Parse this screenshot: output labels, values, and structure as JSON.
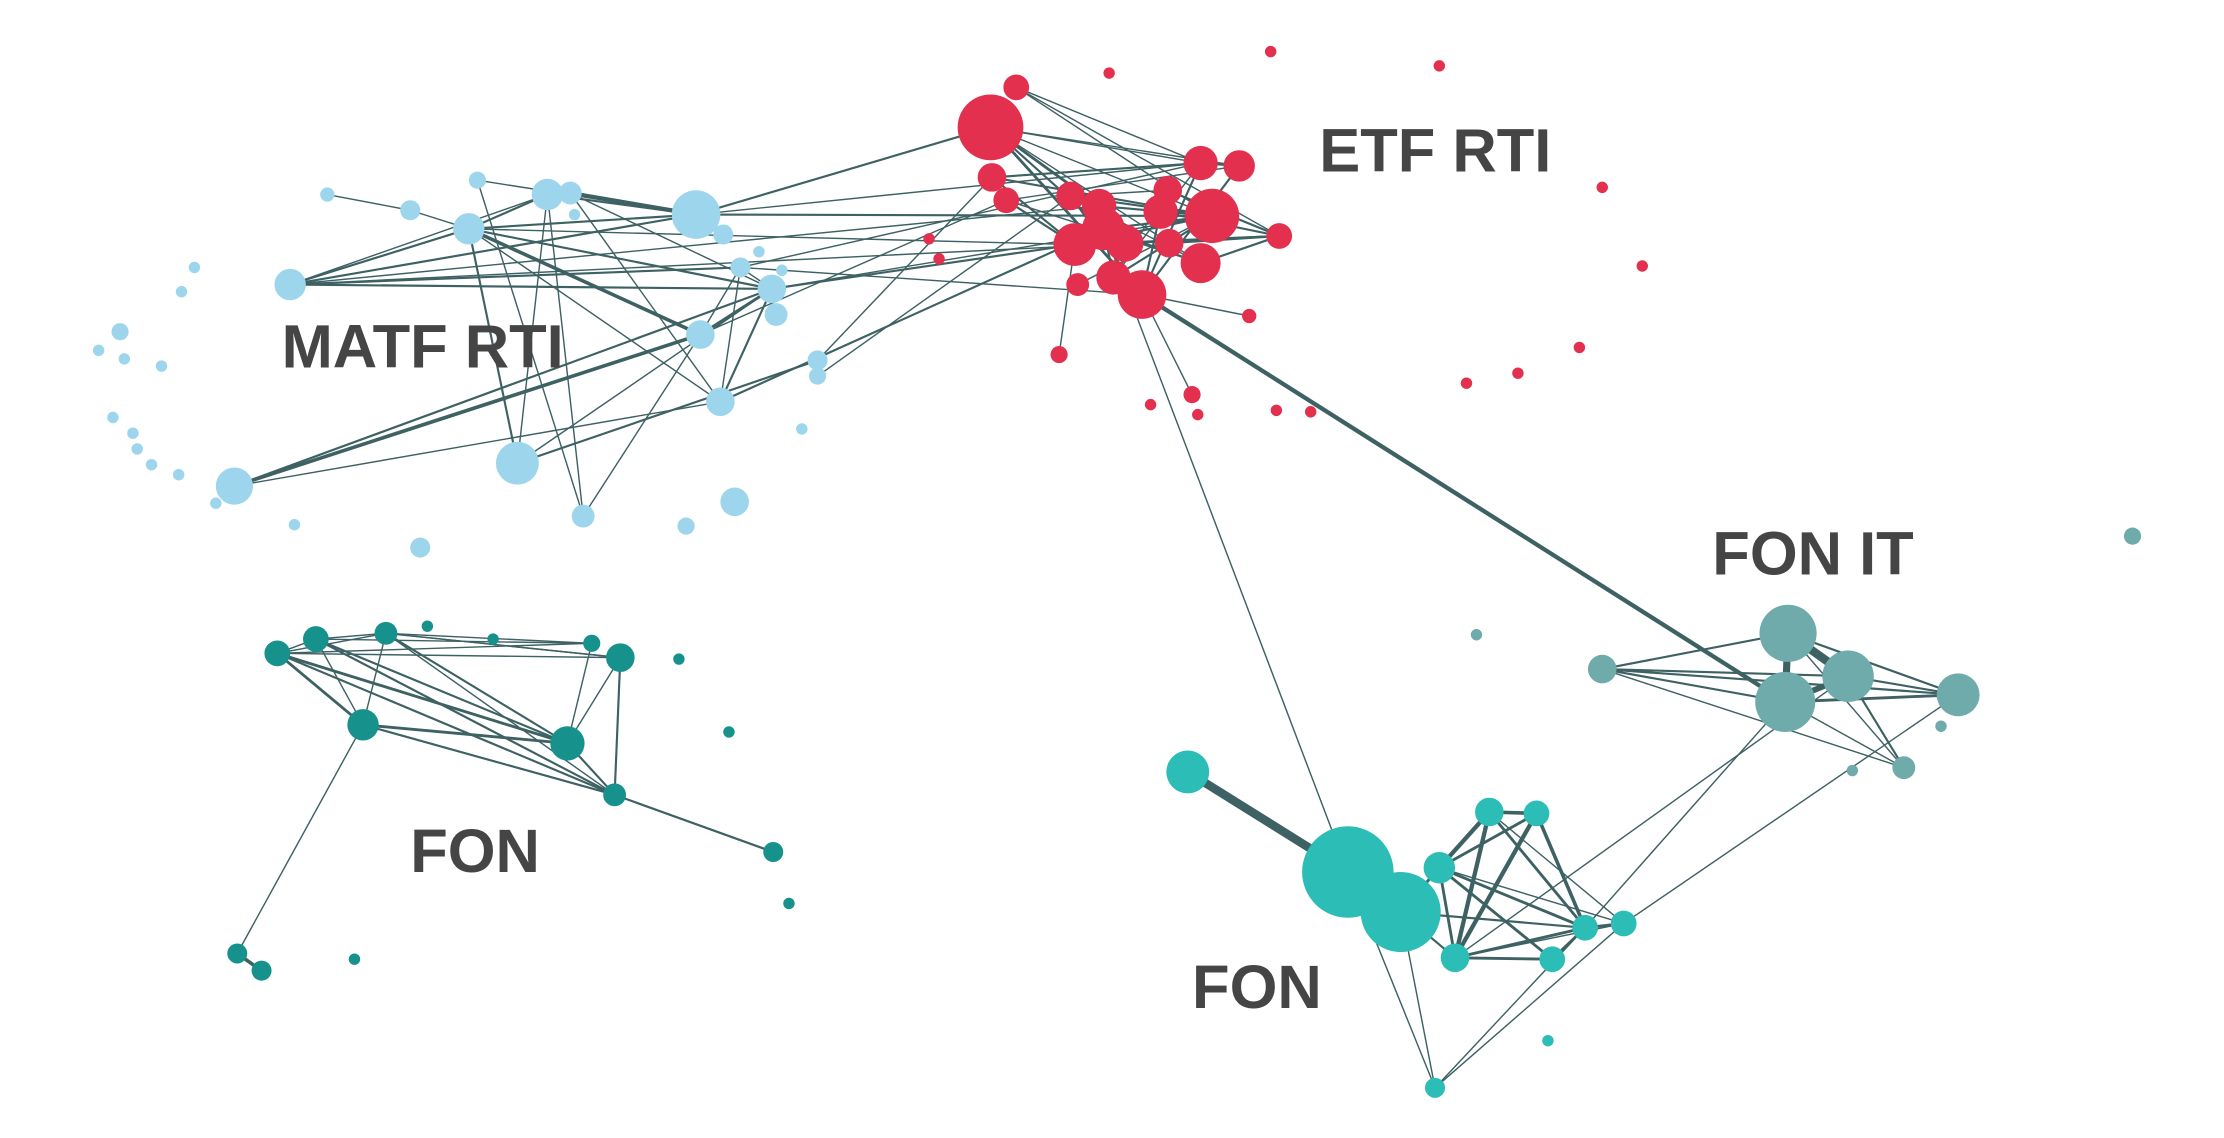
{
  "colors": {
    "edge": "#3e6163",
    "label": "#454545",
    "matf_rti": "#9dd5ec",
    "etf_rti": "#e3304e",
    "fon_left": "#17918c",
    "fon_it": "#6fabab",
    "fon_right": "#2bbdb6",
    "background": "#ffffff"
  },
  "clusters": [
    {
      "id": "matf_rti",
      "label": "MATF RTI",
      "color_key": "matf_rti"
    },
    {
      "id": "etf_rti",
      "label": "ETF RTI",
      "color_key": "etf_rti"
    },
    {
      "id": "fon_left",
      "label": "FON",
      "color_key": "fon_left"
    },
    {
      "id": "fon_it",
      "label": "FON IT",
      "color_key": "fon_it"
    },
    {
      "id": "fon_right",
      "label": "FON",
      "color_key": "fon_right"
    }
  ]
}
